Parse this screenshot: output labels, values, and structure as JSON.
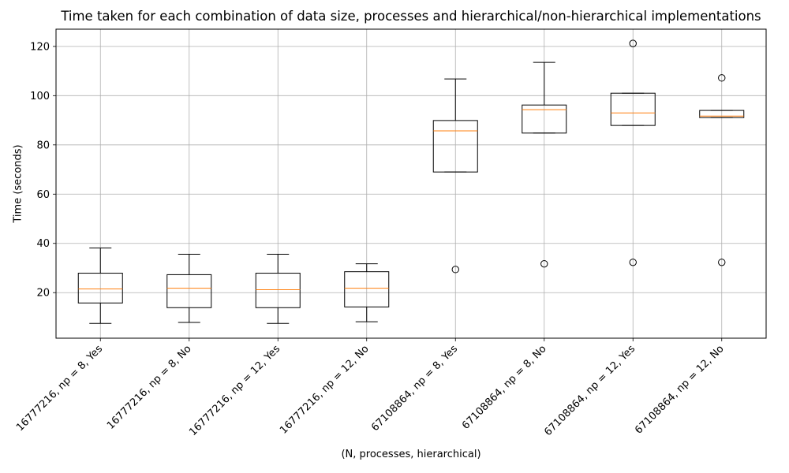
{
  "chart_data": {
    "type": "boxplot",
    "title": "Time taken for each combination of data size, processes and hierarchical/non-hierarchical implementations",
    "xlabel": "(N, processes, hierarchical)",
    "ylabel": "Time (seconds)",
    "ylim": [
      1.5,
      127
    ],
    "yticks": [
      20,
      40,
      60,
      80,
      100,
      120
    ],
    "grid": true,
    "colors": {
      "box": "#000000",
      "median": "#ff7f0e",
      "grid": "#b0b0b0"
    },
    "categories": [
      "16777216, np = 8, Yes",
      "16777216, np = 8, No",
      "16777216, np = 12, Yes",
      "16777216, np = 12, No",
      "67108864, np = 8, Yes",
      "67108864, np = 8, No",
      "67108864, np = 12, Yes",
      "67108864, np = 12, No"
    ],
    "boxes": [
      {
        "whislo": 7.5,
        "q1": 15.8,
        "med": 21.5,
        "q3": 27.9,
        "whishi": 38.1,
        "fliers": []
      },
      {
        "whislo": 7.9,
        "q1": 13.9,
        "med": 21.8,
        "q3": 27.3,
        "whishi": 35.6,
        "fliers": []
      },
      {
        "whislo": 7.5,
        "q1": 13.9,
        "med": 21.2,
        "q3": 27.9,
        "whishi": 35.6,
        "fliers": []
      },
      {
        "whislo": 8.2,
        "q1": 14.2,
        "med": 21.8,
        "q3": 28.5,
        "whishi": 31.7,
        "fliers": []
      },
      {
        "whislo": 69.0,
        "q1": 69.0,
        "med": 85.7,
        "q3": 89.9,
        "whishi": 106.8,
        "fliers": [
          29.4
        ]
      },
      {
        "whislo": 84.8,
        "q1": 84.8,
        "med": 94.3,
        "q3": 96.2,
        "whishi": 113.5,
        "fliers": [
          31.7
        ]
      },
      {
        "whislo": 87.9,
        "q1": 87.9,
        "med": 93.0,
        "q3": 101.0,
        "whishi": 101.0,
        "fliers": [
          32.3,
          121.2
        ]
      },
      {
        "whislo": 91.1,
        "q1": 91.1,
        "med": 91.7,
        "q3": 94.0,
        "whishi": 94.0,
        "fliers": [
          32.3,
          107.2
        ]
      }
    ]
  }
}
